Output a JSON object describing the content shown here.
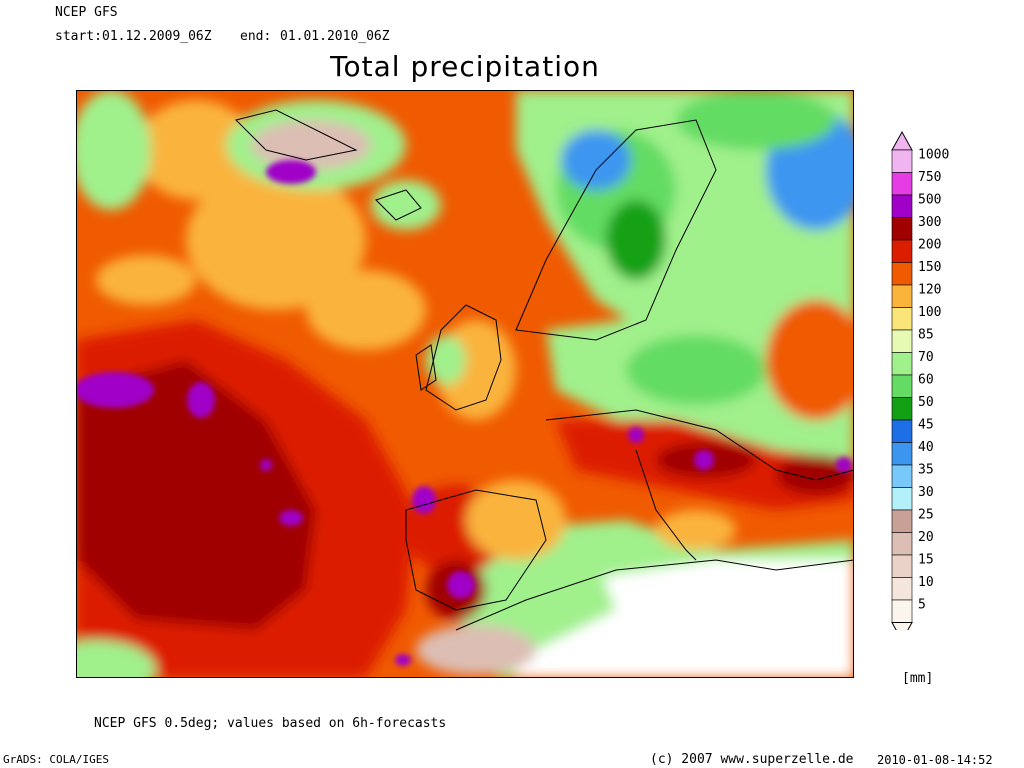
{
  "header": {
    "model": "NCEP GFS",
    "start_label": "start:",
    "start_value": "01.12.2009_06Z",
    "end_label": "end:",
    "end_value": "01.01.2010_06Z"
  },
  "title": "Total precipitation",
  "footnote": "NCEP GFS 0.5deg; values based on 6h-forecasts",
  "credits": {
    "grads": "GrADS: COLA/IGES",
    "copyright": "(c) 2007 www.superzelle.de",
    "timestamp": "2010-01-08-14:52"
  },
  "legend": {
    "unit": "[mm]",
    "levels": [
      {
        "label": "1000",
        "color": "#f0b4f0"
      },
      {
        "label": "750",
        "color": "#e63ce6"
      },
      {
        "label": "500",
        "color": "#a000c8"
      },
      {
        "label": "300",
        "color": "#a00000"
      },
      {
        "label": "200",
        "color": "#dc1e00"
      },
      {
        "label": "150",
        "color": "#f05a00"
      },
      {
        "label": "120",
        "color": "#fab43c"
      },
      {
        "label": "100",
        "color": "#fae678"
      },
      {
        "label": "85",
        "color": "#e6fab4"
      },
      {
        "label": "70",
        "color": "#a0f08c"
      },
      {
        "label": "60",
        "color": "#64dc64"
      },
      {
        "label": "50",
        "color": "#14a014"
      },
      {
        "label": "45",
        "color": "#1e6ee6"
      },
      {
        "label": "40",
        "color": "#3c96f0"
      },
      {
        "label": "35",
        "color": "#78c8fa"
      },
      {
        "label": "30",
        "color": "#b4f0fa"
      },
      {
        "label": "25",
        "color": "#c8a096"
      },
      {
        "label": "20",
        "color": "#dcbeb4"
      },
      {
        "label": "15",
        "color": "#ebd2c8"
      },
      {
        "label": "10",
        "color": "#f5e6dc"
      },
      {
        "label": "5",
        "color": "#fcf5ee"
      }
    ]
  }
}
